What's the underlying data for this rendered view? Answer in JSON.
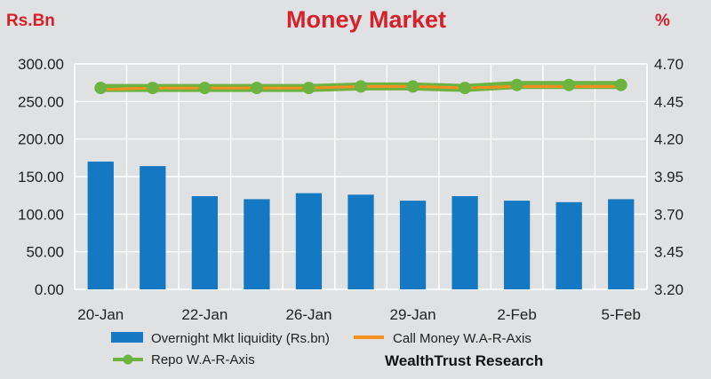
{
  "colors": {
    "background": "#dfe1e2",
    "title": "#d6202a",
    "bar": "#1478c2",
    "call_line": "#f5901e",
    "repo_line": "#6cb33f",
    "grid": "#ffffff"
  },
  "chart_data": {
    "type": "bar",
    "title": "Money Market",
    "ylabel_left": "Rs.Bn",
    "ylabel_right": "%",
    "credit": "WealthTrust Research",
    "categories": [
      "20-Jan",
      "",
      "22-Jan",
      "",
      "26-Jan",
      "",
      "29-Jan",
      "",
      "2-Feb",
      "",
      "5-Feb"
    ],
    "x_tick_labels": [
      "20-Jan",
      "22-Jan",
      "26-Jan",
      "29-Jan",
      "2-Feb",
      "5-Feb"
    ],
    "y_left": {
      "lim": [
        0,
        300
      ],
      "ticks": [
        0,
        50,
        100,
        150,
        200,
        250,
        300
      ],
      "tick_labels": [
        "0.00",
        "50.00",
        "100.00",
        "150.00",
        "200.00",
        "250.00",
        "300.00"
      ]
    },
    "y_right": {
      "lim": [
        3.2,
        4.7
      ],
      "ticks": [
        3.2,
        3.45,
        3.7,
        3.95,
        4.2,
        4.45,
        4.7
      ],
      "tick_labels": [
        "3.20",
        "3.45",
        "3.70",
        "3.95",
        "4.20",
        "4.45",
        "4.70"
      ]
    },
    "grid": true,
    "legend_position": "bottom",
    "series": [
      {
        "name": "Overnight Mkt liquidity (Rs.bn)",
        "type": "bar",
        "axis": "left",
        "values": [
          170,
          164,
          124,
          120,
          128,
          126,
          118,
          124,
          118,
          116,
          120
        ]
      },
      {
        "name": "Call Money W.A-R-Axis",
        "type": "line",
        "axis": "right",
        "values": [
          4.53,
          4.54,
          4.54,
          4.54,
          4.54,
          4.55,
          4.55,
          4.54,
          4.55,
          4.55,
          4.55
        ]
      },
      {
        "name": "Repo W.A-R-Axis",
        "type": "line",
        "axis": "right",
        "values": [
          4.54,
          4.54,
          4.54,
          4.54,
          4.54,
          4.55,
          4.55,
          4.54,
          4.56,
          4.56,
          4.56
        ]
      }
    ]
  }
}
